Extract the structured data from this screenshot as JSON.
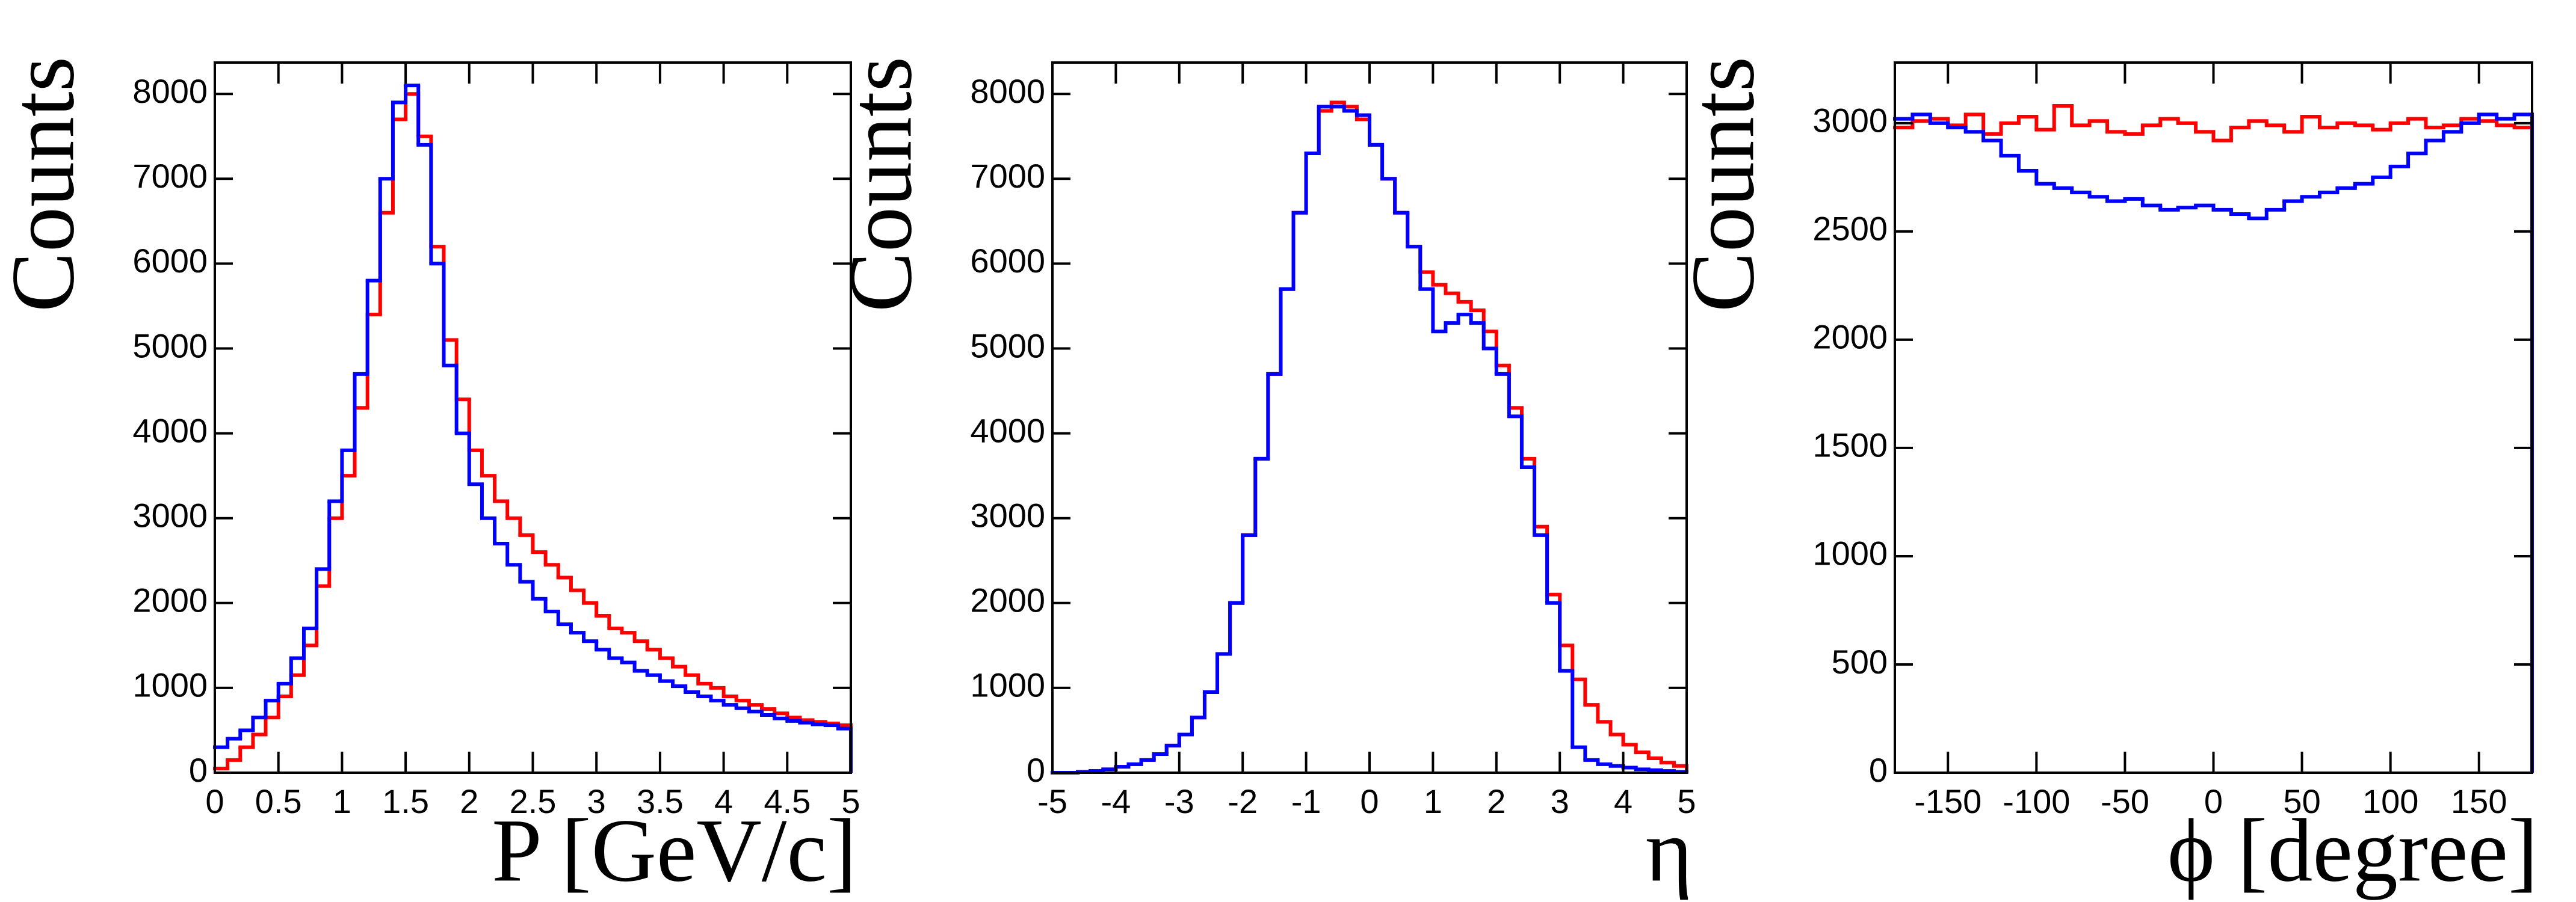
{
  "chart_data": [
    {
      "type": "histogram",
      "xlabel": "P [GeV/c]",
      "ylabel": "Counts",
      "bins": [
        0,
        0.1,
        0.2,
        0.3,
        0.4,
        0.5,
        0.6,
        0.7,
        0.8,
        0.9,
        1,
        1.1,
        1.2,
        1.3,
        1.4,
        1.5,
        1.6,
        1.7,
        1.8,
        1.9,
        2,
        2.1,
        2.2,
        2.3,
        2.4,
        2.5,
        2.6,
        2.7,
        2.8,
        2.9,
        3,
        3.1,
        3.2,
        3.3,
        3.4,
        3.5,
        3.6,
        3.7,
        3.8,
        3.9,
        4,
        4.1,
        4.2,
        4.3,
        4.4,
        4.5,
        4.6,
        4.7,
        4.8,
        4.9,
        5
      ],
      "series": [
        {
          "color": "#ff0000",
          "values": [
            50,
            150,
            300,
            450,
            650,
            900,
            1150,
            1500,
            2200,
            3000,
            3500,
            4300,
            5400,
            6600,
            7700,
            8000,
            7500,
            6200,
            5100,
            4400,
            3800,
            3500,
            3200,
            3000,
            2800,
            2600,
            2450,
            2300,
            2150,
            2000,
            1850,
            1700,
            1650,
            1550,
            1450,
            1350,
            1250,
            1150,
            1050,
            1000,
            900,
            850,
            800,
            750,
            700,
            650,
            620,
            600,
            580,
            560
          ]
        },
        {
          "color": "#0000ff",
          "values": [
            300,
            400,
            500,
            650,
            850,
            1050,
            1350,
            1700,
            2400,
            3200,
            3800,
            4700,
            5800,
            7000,
            7900,
            8100,
            7400,
            6000,
            4800,
            4000,
            3400,
            3000,
            2700,
            2450,
            2250,
            2050,
            1900,
            1750,
            1650,
            1550,
            1450,
            1350,
            1300,
            1200,
            1150,
            1080,
            1020,
            950,
            900,
            850,
            800,
            760,
            720,
            680,
            640,
            610,
            590,
            570,
            560,
            520
          ]
        }
      ],
      "xlim": [
        0,
        5
      ],
      "xticks": [
        0,
        0.5,
        1,
        1.5,
        2,
        2.5,
        3,
        3.5,
        4,
        4.5,
        5
      ],
      "ylim": [
        0,
        8370
      ],
      "yticks": [
        0,
        1000,
        2000,
        3000,
        4000,
        5000,
        6000,
        7000,
        8000
      ]
    },
    {
      "type": "histogram",
      "xlabel": "η",
      "ylabel": "Counts",
      "bins": [
        -5,
        -4.8,
        -4.6,
        -4.4,
        -4.2,
        -4,
        -3.8,
        -3.6,
        -3.4,
        -3.2,
        -3,
        -2.8,
        -2.6,
        -2.4,
        -2.2,
        -2,
        -1.8,
        -1.6,
        -1.4,
        -1.2,
        -1,
        -0.8,
        -0.6,
        -0.4,
        -0.2,
        0,
        0.2,
        0.4,
        0.6,
        0.8,
        1,
        1.2,
        1.4,
        1.6,
        1.8,
        2,
        2.2,
        2.4,
        2.6,
        2.8,
        3,
        3.2,
        3.4,
        3.6,
        3.8,
        4,
        4.2,
        4.4,
        4.6,
        4.8,
        5
      ],
      "series": [
        {
          "color": "#ff0000",
          "values": [
            0,
            0,
            10,
            20,
            40,
            70,
            100,
            150,
            220,
            320,
            450,
            650,
            950,
            1400,
            2000,
            2800,
            3700,
            4700,
            5700,
            6600,
            7300,
            7800,
            7900,
            7850,
            7700,
            7400,
            7000,
            6600,
            6200,
            5900,
            5750,
            5650,
            5550,
            5450,
            5200,
            4800,
            4300,
            3700,
            2900,
            2100,
            1500,
            1100,
            800,
            600,
            450,
            330,
            240,
            170,
            120,
            80
          ]
        },
        {
          "color": "#0000ff",
          "values": [
            0,
            0,
            10,
            20,
            40,
            70,
            100,
            150,
            220,
            320,
            450,
            650,
            950,
            1400,
            2000,
            2800,
            3700,
            4700,
            5700,
            6600,
            7300,
            7850,
            7850,
            7800,
            7750,
            7400,
            7000,
            6600,
            6200,
            5700,
            5200,
            5300,
            5400,
            5300,
            5000,
            4700,
            4200,
            3600,
            2800,
            2000,
            1200,
            300,
            150,
            100,
            80,
            60,
            40,
            30,
            20,
            10
          ]
        }
      ],
      "xlim": [
        -5,
        5
      ],
      "xticks": [
        -5,
        -4,
        -3,
        -2,
        -1,
        0,
        1,
        2,
        3,
        4,
        5
      ],
      "ylim": [
        0,
        8370
      ],
      "yticks": [
        0,
        1000,
        2000,
        3000,
        4000,
        5000,
        6000,
        7000,
        8000
      ]
    },
    {
      "type": "histogram",
      "xlabel": "ϕ [degree]",
      "ylabel": "Counts",
      "bins": [
        -180,
        -170,
        -160,
        -150,
        -140,
        -130,
        -120,
        -110,
        -100,
        -90,
        -80,
        -70,
        -60,
        -50,
        -40,
        -30,
        -20,
        -10,
        0,
        10,
        20,
        30,
        40,
        50,
        60,
        70,
        80,
        90,
        100,
        110,
        120,
        130,
        140,
        150,
        160,
        170,
        180
      ],
      "series": [
        {
          "color": "#ff0000",
          "values": [
            2980,
            3010,
            3020,
            2990,
            3040,
            2950,
            3000,
            3030,
            2970,
            3080,
            2990,
            3010,
            2960,
            2950,
            2990,
            3020,
            3000,
            2960,
            2920,
            2980,
            3010,
            2990,
            2960,
            3030,
            2980,
            3000,
            2990,
            2970,
            3000,
            3020,
            2980,
            2990,
            3020,
            3010,
            2990,
            2980
          ]
        },
        {
          "color": "#0000ff",
          "values": [
            3020,
            3040,
            3000,
            2980,
            2960,
            2920,
            2850,
            2780,
            2720,
            2700,
            2680,
            2660,
            2640,
            2650,
            2620,
            2600,
            2610,
            2620,
            2600,
            2580,
            2560,
            2600,
            2640,
            2660,
            2680,
            2700,
            2720,
            2750,
            2800,
            2860,
            2920,
            2960,
            3000,
            3040,
            3020,
            3040
          ]
        }
      ],
      "xlim": [
        -180,
        180
      ],
      "xticks": [
        -150,
        -100,
        -50,
        0,
        50,
        100,
        150
      ],
      "ylim": [
        0,
        3280
      ],
      "yticks": [
        0,
        500,
        1000,
        1500,
        2000,
        2500,
        3000
      ]
    }
  ]
}
